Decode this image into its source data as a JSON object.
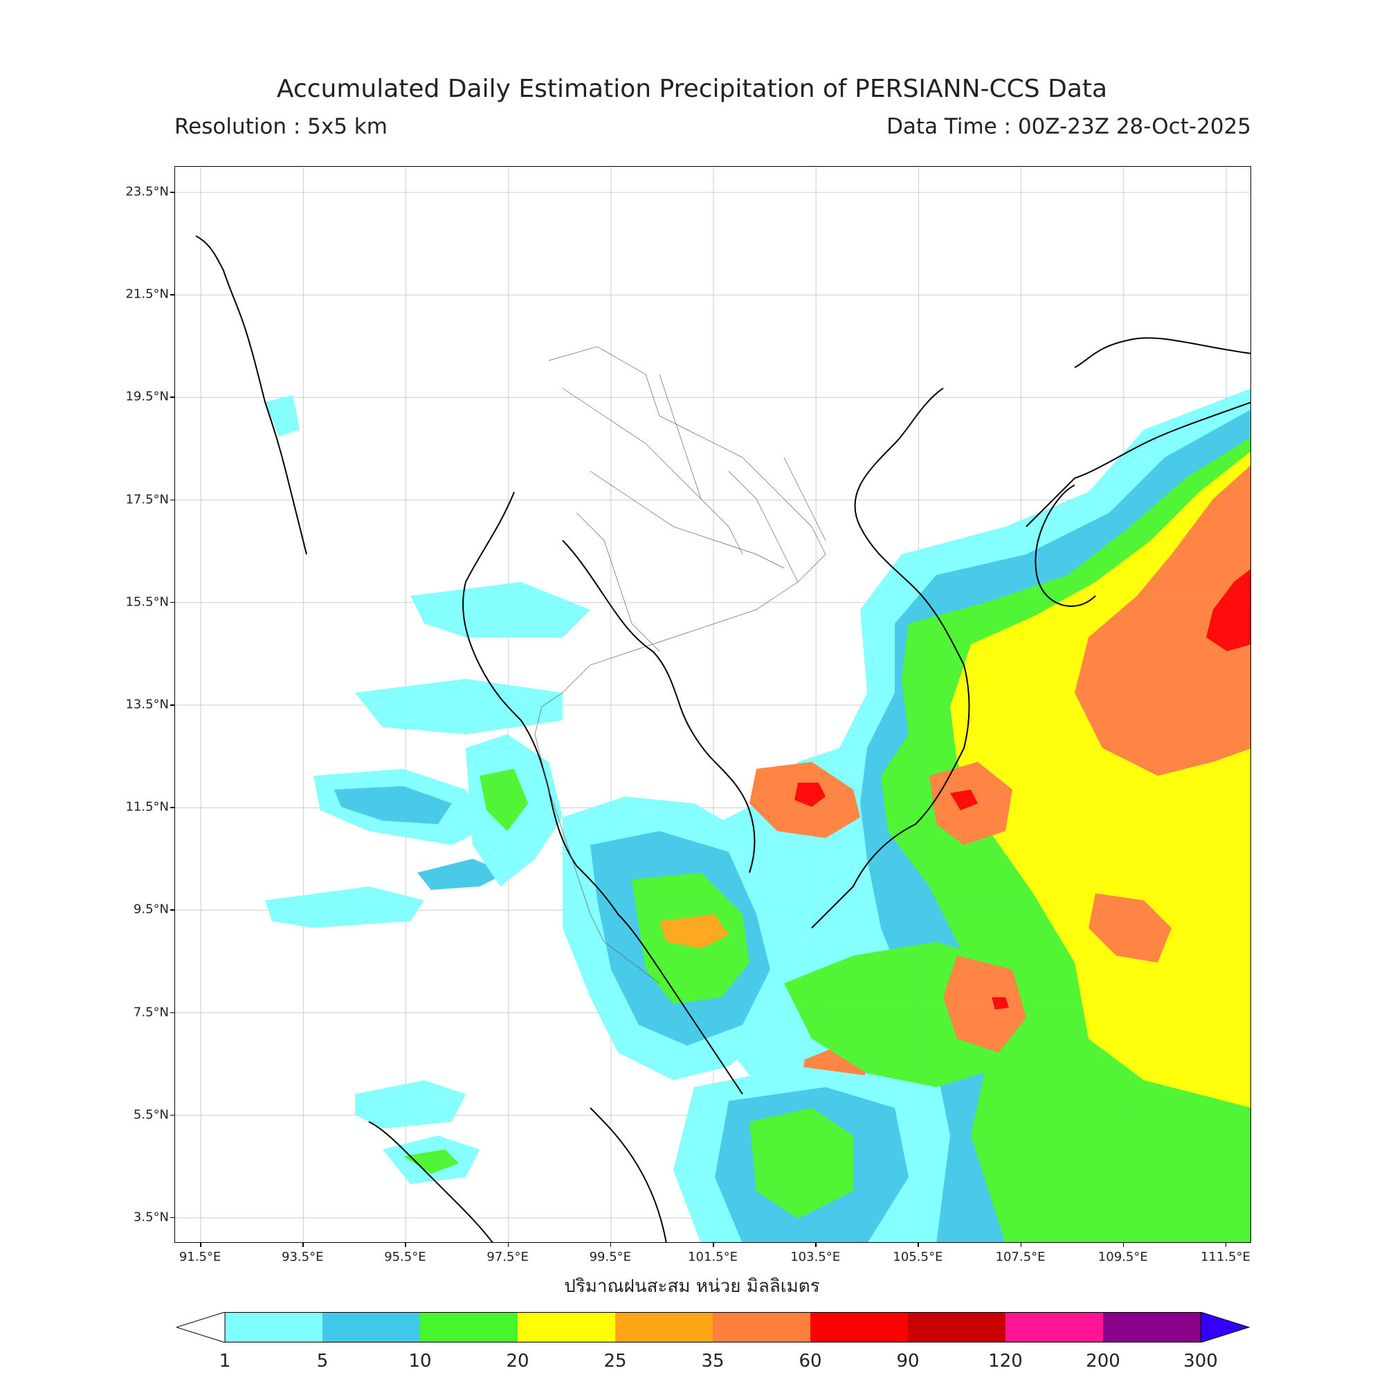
{
  "title": "Accumulated Daily Estimation Precipitation of PERSIANN-CCS Data",
  "resolution": "Resolution : 5x5 km",
  "data_time": "Data Time : 00Z-23Z 28-Oct-2025",
  "xlabel": "ปริมาณฝนสะสม หน่วย มิลลิเมตร",
  "map": {
    "lon_range": [
      91.0,
      112.0
    ],
    "lat_range": [
      3.0,
      24.0
    ],
    "lat_ticks": [
      "23.5°N",
      "21.5°N",
      "19.5°N",
      "17.5°N",
      "15.5°N",
      "13.5°N",
      "11.5°N",
      "9.5°N",
      "7.5°N",
      "5.5°N",
      "3.5°N"
    ],
    "lat_values": [
      23.5,
      21.5,
      19.5,
      17.5,
      15.5,
      13.5,
      11.5,
      9.5,
      7.5,
      5.5,
      3.5
    ],
    "lon_ticks": [
      "91.5°E",
      "93.5°E",
      "95.5°E",
      "97.5°E",
      "99.5°E",
      "101.5°E",
      "103.5°E",
      "105.5°E",
      "107.5°E",
      "109.5°E",
      "111.5°E"
    ],
    "lon_values": [
      91.5,
      93.5,
      95.5,
      97.5,
      99.5,
      101.5,
      103.5,
      105.5,
      107.5,
      109.5,
      111.5
    ],
    "grid": true
  },
  "colorbar": {
    "labels": [
      "1",
      "5",
      "10",
      "20",
      "25",
      "35",
      "60",
      "90",
      "120",
      "200",
      "300"
    ],
    "colors": [
      "#7fffff",
      "#40c8e8",
      "#48f52c",
      "#ffff00",
      "#ffa518",
      "#ff7f3c",
      "#ff0000",
      "#c80000",
      "#ff1493",
      "#8b008b"
    ],
    "under_color": "#ffffff",
    "over_color": "#3300ff"
  }
}
